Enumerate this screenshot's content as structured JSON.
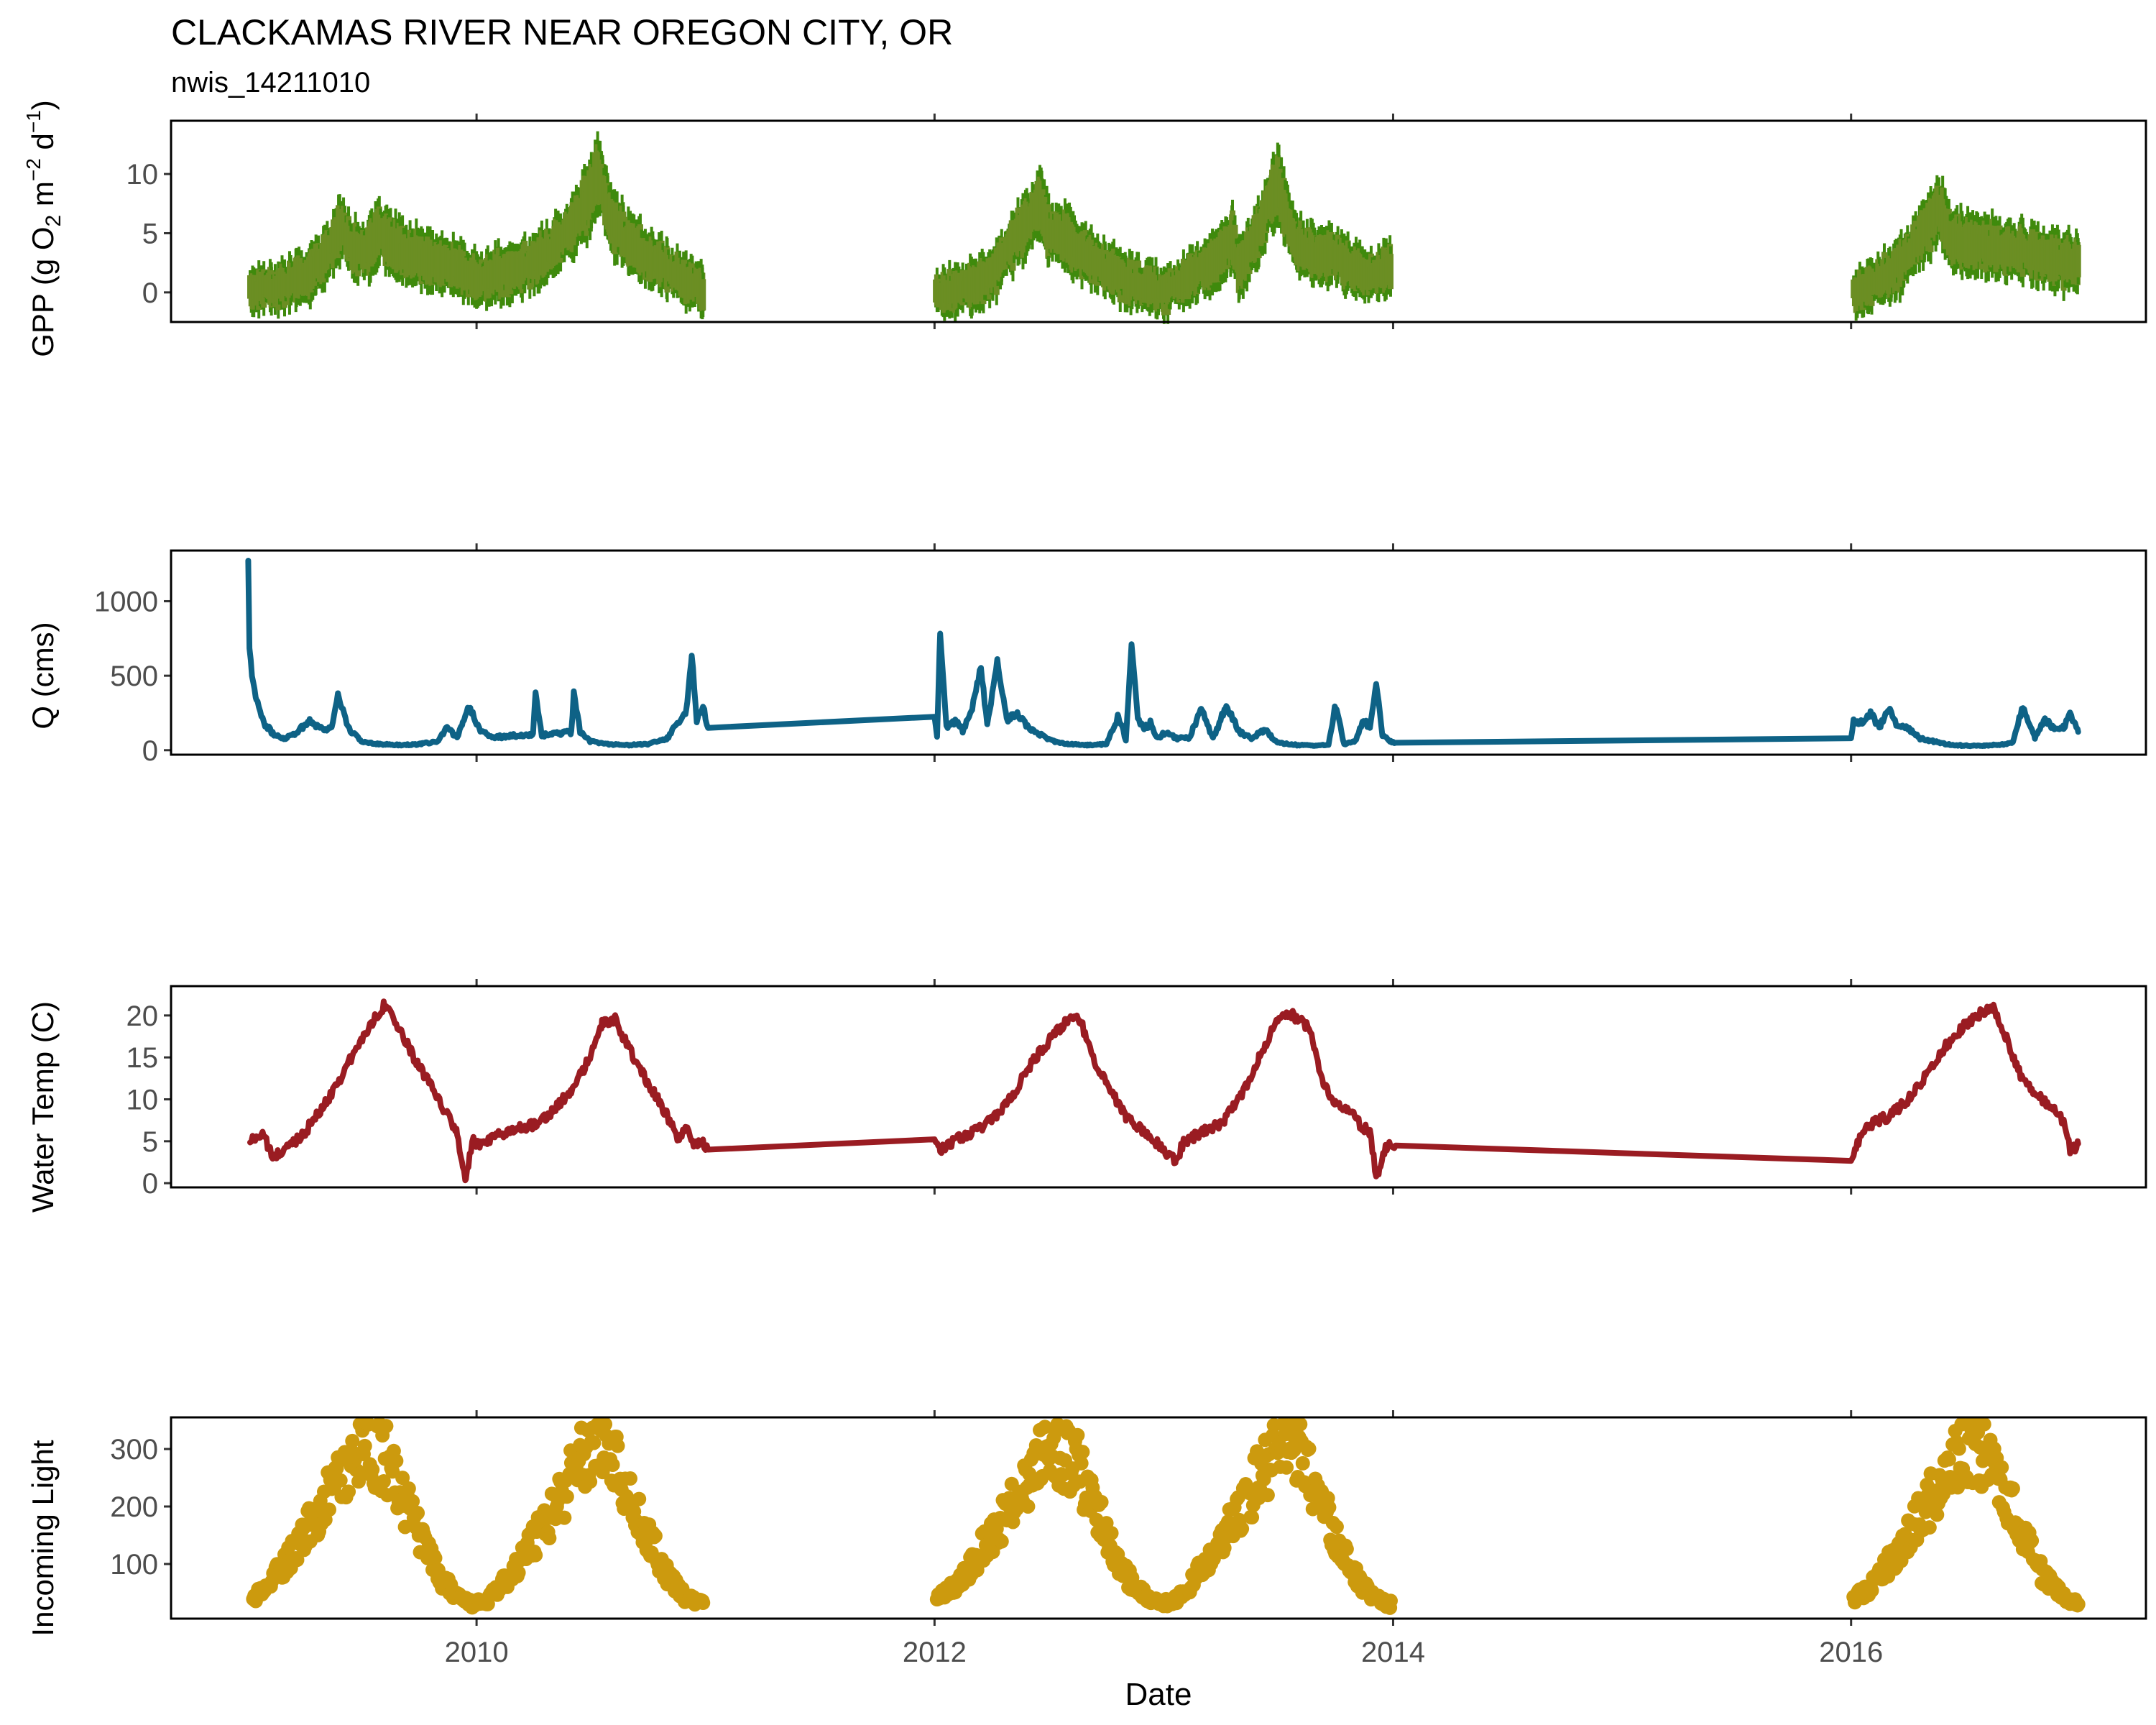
{
  "chart_data": {
    "type": "line",
    "title": "CLACKAMAS RIVER NEAR OREGON CITY, OR",
    "subtitle": "nwis_14211010",
    "xlabel": "Date",
    "xlim": [
      "2008-09-01",
      "2017-04-15"
    ],
    "xticks": [
      "2010-01-01",
      "2012-01-01",
      "2014-01-01",
      "2016-01-01"
    ],
    "xtick_labels": [
      "2010",
      "2012",
      "2014",
      "2016"
    ],
    "grid": false,
    "legend": "none",
    "panels": [
      {
        "id": "gpp",
        "type": "line",
        "ylabel_main": "GPP (g  O",
        "ylabel_sub": "2",
        "ylabel_mid": " m",
        "ylabel_sup1": "−2",
        "ylabel_mid2": " d",
        "ylabel_sup2": "−1",
        "ylabel_end": ")",
        "ylim": [
          -2.5,
          14.5
        ],
        "yticks": [
          0,
          5,
          10
        ],
        "ytick_labels": [
          "0",
          "5",
          "10"
        ],
        "color": "#6b8e23",
        "accent": "#3f8a0c",
        "segments": [
          {
            "x": [
              "2009-01-05",
              "2009-02-15",
              "2009-03-20",
              "2009-04-20",
              "2009-05-10",
              "2009-06-01",
              "2009-06-20",
              "2009-07-10",
              "2009-08-01",
              "2009-09-01",
              "2009-10-01",
              "2009-11-01",
              "2009-12-01",
              "2010-01-01",
              "2010-02-01",
              "2010-03-01",
              "2010-04-01",
              "2010-05-01",
              "2010-06-01",
              "2010-06-20",
              "2010-07-01",
              "2010-07-15",
              "2010-08-01",
              "2010-09-01",
              "2010-10-01",
              "2010-11-01",
              "2010-12-01",
              "2010-12-28"
            ],
            "y": [
              0.2,
              0.5,
              1.0,
              2.0,
              3.5,
              5.5,
              3.5,
              3.5,
              5.0,
              3.5,
              3.0,
              2.5,
              2.0,
              1.0,
              1.5,
              1.8,
              2.5,
              3.5,
              5.5,
              7.0,
              8.0,
              10.0,
              6.5,
              4.0,
              3.0,
              2.0,
              1.0,
              0.2
            ]
          },
          {
            "x": [
              "2012-01-03",
              "2012-02-01",
              "2012-03-01",
              "2012-04-01",
              "2012-05-01",
              "2012-06-01",
              "2012-06-20",
              "2012-07-01",
              "2012-08-01",
              "2012-09-01",
              "2012-10-01",
              "2012-11-01",
              "2012-12-01",
              "2013-01-01",
              "2013-02-01",
              "2013-03-01",
              "2013-04-01",
              "2013-04-20",
              "2013-05-01",
              "2013-06-01",
              "2013-06-20",
              "2013-07-01",
              "2013-08-01",
              "2013-09-01",
              "2013-10-01",
              "2013-11-01",
              "2013-12-01",
              "2013-12-28"
            ],
            "y": [
              0.0,
              0.0,
              0.5,
              1.5,
              4.0,
              6.0,
              7.5,
              5.0,
              4.5,
              3.0,
              2.0,
              1.0,
              0.5,
              0.0,
              1.0,
              2.0,
              3.0,
              4.5,
              2.0,
              5.0,
              8.0,
              9.0,
              4.0,
              3.0,
              3.0,
              2.0,
              1.5,
              2.0
            ]
          },
          {
            "x": [
              "2016-01-05",
              "2016-02-01",
              "2016-03-01",
              "2016-04-01",
              "2016-05-01",
              "2016-05-20",
              "2016-06-10",
              "2016-07-01",
              "2016-08-01",
              "2016-09-01",
              "2016-10-01",
              "2016-11-01",
              "2016-12-01",
              "2016-12-28"
            ],
            "y": [
              0.0,
              0.5,
              1.5,
              3.0,
              5.5,
              7.0,
              4.5,
              4.0,
              4.0,
              3.5,
              3.5,
              3.0,
              2.5,
              2.5
            ]
          }
        ]
      },
      {
        "id": "q",
        "type": "line",
        "ylabel": "Q (cms)",
        "ylim": [
          -30,
          1340
        ],
        "yticks": [
          0,
          500,
          1000
        ],
        "ytick_labels": [
          "0",
          "500",
          "1000"
        ],
        "color": "#0e6286",
        "segments": [
          {
            "x": [
              "2009-01-02",
              "2009-01-04",
              "2009-01-08",
              "2009-01-15",
              "2009-01-25",
              "2009-02-10",
              "2009-03-01",
              "2009-03-20",
              "2009-04-10",
              "2009-05-01",
              "2009-05-15",
              "2009-05-25",
              "2009-06-10",
              "2009-07-01",
              "2009-08-01",
              "2009-09-01",
              "2009-10-01",
              "2009-11-01",
              "2009-11-15",
              "2009-12-01",
              "2009-12-10",
              "2009-12-20",
              "2010-01-05",
              "2010-01-20",
              "2010-02-10",
              "2010-03-01",
              "2010-04-01",
              "2010-04-05",
              "2010-04-15",
              "2010-05-01",
              "2010-06-01",
              "2010-06-05",
              "2010-06-15",
              "2010-07-01",
              "2010-08-01",
              "2010-09-01",
              "2010-10-01",
              "2010-11-01",
              "2010-11-20",
              "2010-12-01",
              "2010-12-10",
              "2010-12-18",
              "2010-12-28",
              "2011-01-05",
              "2012-01-01",
              "2012-01-05",
              "2012-01-10",
              "2012-01-20",
              "2012-02-05",
              "2012-02-15",
              "2012-03-01",
              "2012-03-15",
              "2012-03-25",
              "2012-04-10",
              "2012-04-25",
              "2012-05-10",
              "2012-06-01",
              "2012-07-01",
              "2012-08-01",
              "2012-09-01",
              "2012-10-01",
              "2012-10-20",
              "2012-11-01",
              "2012-11-10",
              "2012-11-20",
              "2012-12-01",
              "2012-12-10",
              "2012-12-20",
              "2013-01-05",
              "2013-01-20",
              "2013-02-10",
              "2013-03-01",
              "2013-03-20",
              "2013-04-10",
              "2013-05-01",
              "2013-05-20",
              "2013-06-10",
              "2013-07-01",
              "2013-08-01",
              "2013-09-01",
              "2013-09-20",
              "2013-10-01",
              "2013-10-15",
              "2013-11-01",
              "2013-11-15",
              "2013-11-25",
              "2013-12-05",
              "2013-12-15",
              "2013-12-28",
              "2014-01-05",
              "2016-01-01",
              "2016-01-05",
              "2016-01-15",
              "2016-02-01",
              "2016-02-15",
              "2016-03-01",
              "2016-03-15",
              "2016-04-01",
              "2016-04-20",
              "2016-05-10",
              "2016-06-01",
              "2016-07-01",
              "2016-08-01",
              "2016-09-01",
              "2016-09-15",
              "2016-10-01",
              "2016-10-20",
              "2016-11-05",
              "2016-11-20",
              "2016-12-05",
              "2016-12-15",
              "2016-12-28"
            ],
            "y": [
              1280,
              700,
              500,
              350,
              200,
              110,
              80,
              120,
              200,
              140,
              150,
              380,
              150,
              60,
              40,
              35,
              40,
              60,
              150,
              80,
              200,
              300,
              150,
              90,
              90,
              100,
              100,
              380,
              100,
              110,
              120,
              380,
              120,
              60,
              40,
              35,
              40,
              80,
              200,
              250,
              650,
              200,
              300,
              150,
              240,
              100,
              800,
              150,
              200,
              130,
              280,
              560,
              160,
              600,
              200,
              250,
              150,
              70,
              40,
              35,
              40,
              230,
              70,
              720,
              200,
              150,
              180,
              80,
              120,
              80,
              80,
              280,
              80,
              300,
              120,
              80,
              140,
              50,
              35,
              30,
              40,
              300,
              40,
              60,
              200,
              150,
              450,
              100,
              60,
              50,
              80,
              200,
              180,
              250,
              150,
              280,
              160,
              150,
              80,
              60,
              40,
              30,
              30,
              40,
              50,
              300,
              80,
              200,
              150,
              150,
              240,
              130
            ]
          }
        ]
      },
      {
        "id": "temp",
        "type": "line",
        "ylabel": "Water Temp (C)",
        "ylim": [
          -0.5,
          23.5
        ],
        "yticks": [
          0,
          5,
          10,
          15,
          20
        ],
        "ytick_labels": [
          "0",
          "5",
          "10",
          "15",
          "20"
        ],
        "color": "#9a1c22",
        "segments": [
          {
            "x": [
              "2009-01-05",
              "2009-01-25",
              "2009-02-10",
              "2009-03-01",
              "2009-04-01",
              "2009-05-01",
              "2009-06-01",
              "2009-07-01",
              "2009-07-25",
              "2009-08-10",
              "2009-09-01",
              "2009-10-01",
              "2009-11-01",
              "2009-11-20",
              "2009-12-01",
              "2009-12-10",
              "2009-12-15",
              "2009-12-25",
              "2010-01-10",
              "2010-02-01",
              "2010-03-01",
              "2010-04-01",
              "2010-05-01",
              "2010-06-01",
              "2010-07-01",
              "2010-07-20",
              "2010-08-10",
              "2010-09-01",
              "2010-10-01",
              "2010-11-01",
              "2010-11-20",
              "2010-12-01",
              "2010-12-15",
              "2010-12-28",
              "2011-01-05",
              "2012-01-01",
              "2012-01-10",
              "2012-02-01",
              "2012-03-01",
              "2012-04-01",
              "2012-05-01",
              "2012-06-01",
              "2012-07-01",
              "2012-08-01",
              "2012-08-20",
              "2012-09-10",
              "2012-10-01",
              "2012-11-01",
              "2012-12-01",
              "2013-01-01",
              "2013-01-20",
              "2013-02-01",
              "2013-03-01",
              "2013-04-01",
              "2013-05-01",
              "2013-06-01",
              "2013-07-01",
              "2013-07-25",
              "2013-08-20",
              "2013-09-10",
              "2013-10-01",
              "2013-10-20",
              "2013-11-10",
              "2013-11-25",
              "2013-12-05",
              "2013-12-10",
              "2013-12-20",
              "2014-01-05",
              "2016-01-01",
              "2016-01-20",
              "2016-02-01",
              "2016-03-01",
              "2016-04-01",
              "2016-05-01",
              "2016-06-01",
              "2016-07-01",
              "2016-08-01",
              "2016-08-15",
              "2016-09-01",
              "2016-10-01",
              "2016-11-01",
              "2016-11-20",
              "2016-12-05",
              "2016-12-15",
              "2016-12-28"
            ],
            "y": [
              5.0,
              6.0,
              3.0,
              4.0,
              6.0,
              9.0,
              13.0,
              17.0,
              20.0,
              21.5,
              18.0,
              14.0,
              10.0,
              7.5,
              6.0,
              2.0,
              0.3,
              5.0,
              4.5,
              5.5,
              6.5,
              7.0,
              8.5,
              11.0,
              15.0,
              19.0,
              19.5,
              16.0,
              12.0,
              8.0,
              5.0,
              6.5,
              4.5,
              5.0,
              4.0,
              5.5,
              4.0,
              5.0,
              6.0,
              7.5,
              10.0,
              14.0,
              17.0,
              19.5,
              19.5,
              15.0,
              12.0,
              8.0,
              6.0,
              4.0,
              2.5,
              5.0,
              6.0,
              7.0,
              10.0,
              15.0,
              19.5,
              20.0,
              18.5,
              12.0,
              9.5,
              9.0,
              7.0,
              6.0,
              1.0,
              1.5,
              4.5,
              4.5,
              2.5,
              6.5,
              7.0,
              8.0,
              10.0,
              13.0,
              16.5,
              19.0,
              20.5,
              21.0,
              18.0,
              12.0,
              10.0,
              9.0,
              7.0,
              4.0,
              4.5
            ]
          }
        ]
      },
      {
        "id": "light",
        "type": "scatter",
        "ylabel": "Incoming Light",
        "ylim": [
          5,
          355
        ],
        "yticks": [
          100,
          200,
          300
        ],
        "ytick_labels": [
          "100",
          "200",
          "300"
        ],
        "color": "#cc9a0e",
        "segments": [
          {
            "x": [
              "2009-01-10",
              "2009-02-01",
              "2009-03-01",
              "2009-04-01",
              "2009-05-01",
              "2009-06-01",
              "2009-06-25",
              "2009-07-15",
              "2009-08-10",
              "2009-09-01",
              "2009-10-01",
              "2009-11-01",
              "2009-12-01",
              "2009-12-25",
              "2010-01-15",
              "2010-02-01",
              "2010-03-01",
              "2010-04-01",
              "2010-05-01",
              "2010-06-01",
              "2010-06-25",
              "2010-07-15",
              "2010-08-10",
              "2010-09-01",
              "2010-10-01",
              "2010-11-01",
              "2010-12-01",
              "2010-12-28"
            ],
            "y": [
              40,
              60,
              100,
              150,
              200,
              260,
              300,
              300,
              280,
              230,
              150,
              80,
              45,
              30,
              35,
              50,
              90,
              140,
              190,
              250,
              300,
              320,
              290,
              220,
              150,
              80,
              40,
              30
            ]
          },
          {
            "x": [
              "2012-01-05",
              "2012-02-01",
              "2012-03-01",
              "2012-04-01",
              "2012-05-01",
              "2012-06-01",
              "2012-06-25",
              "2012-07-15",
              "2012-08-10",
              "2012-09-01",
              "2012-10-01",
              "2012-11-01",
              "2012-12-01",
              "2012-12-25",
              "2013-01-15",
              "2013-02-01",
              "2013-03-01",
              "2013-04-01",
              "2013-05-01",
              "2013-06-01",
              "2013-06-25",
              "2013-07-15",
              "2013-08-10",
              "2013-09-01",
              "2013-10-01",
              "2013-11-01",
              "2013-12-01",
              "2013-12-28"
            ],
            "y": [
              40,
              60,
              100,
              150,
              200,
              260,
              300,
              300,
              280,
              230,
              150,
              80,
              45,
              30,
              35,
              50,
              90,
              140,
              190,
              250,
              300,
              320,
              290,
              220,
              150,
              80,
              40,
              30
            ]
          },
          {
            "x": [
              "2016-01-05",
              "2016-02-01",
              "2016-03-01",
              "2016-04-01",
              "2016-05-01",
              "2016-06-01",
              "2016-06-25",
              "2016-07-15",
              "2016-08-10",
              "2016-09-01",
              "2016-10-01",
              "2016-11-01",
              "2016-12-01",
              "2016-12-28"
            ],
            "y": [
              40,
              60,
              100,
              150,
              200,
              260,
              300,
              300,
              280,
              230,
              150,
              80,
              45,
              30
            ]
          }
        ]
      }
    ]
  }
}
